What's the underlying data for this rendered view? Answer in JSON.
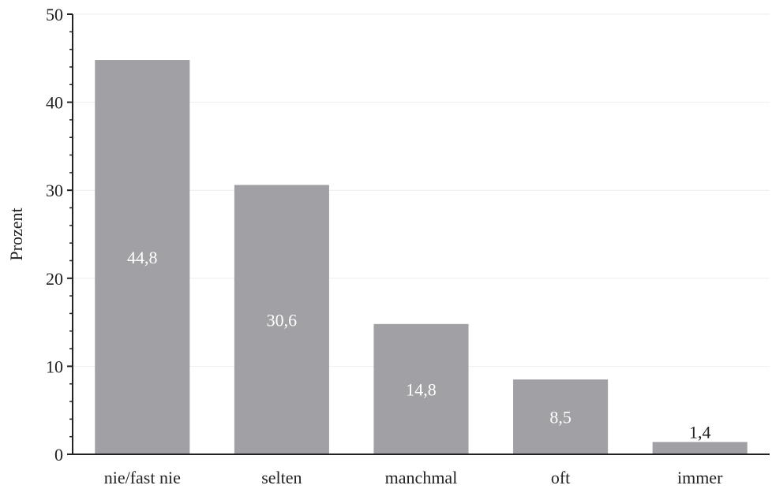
{
  "chart_data": {
    "type": "bar",
    "title": "",
    "xlabel": "",
    "ylabel": "Prozent",
    "categories": [
      "nie/fast nie",
      "selten",
      "manchmal",
      "oft",
      "immer"
    ],
    "values": [
      44.8,
      30.6,
      14.8,
      8.5,
      1.4
    ],
    "value_labels": [
      "44,8",
      "30,6",
      "14,8",
      "8,5",
      "1,4"
    ],
    "ylim": [
      0,
      50
    ],
    "yticks": [
      0,
      10,
      20,
      30,
      40,
      50
    ],
    "ytick_labels": [
      "0",
      "10",
      "20",
      "30",
      "40",
      "50"
    ],
    "grid": true,
    "bar_color": "#a1a1a5",
    "grid_color": "#eeeeee",
    "axis_color": "#222222"
  }
}
